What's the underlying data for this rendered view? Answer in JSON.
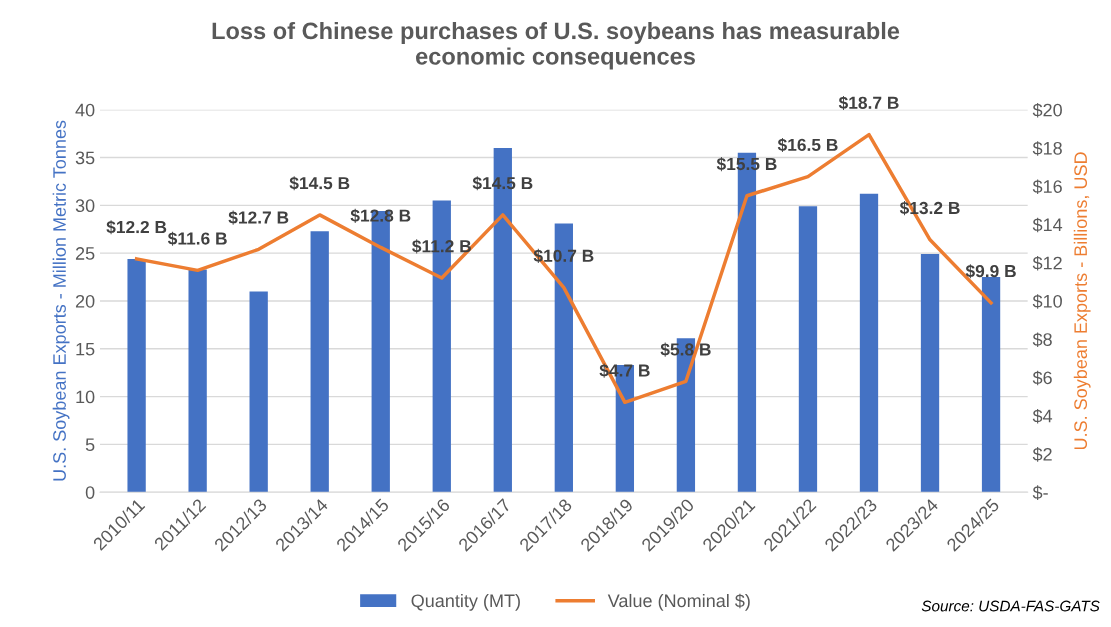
{
  "chart_data": {
    "type": "bar",
    "title": "Loss of Chinese purchases of U.S. soybeans has measurable economic consequences",
    "categories": [
      "2010/11",
      "2011/12",
      "2012/13",
      "2013/14",
      "2014/15",
      "2015/16",
      "2016/17",
      "2017/18",
      "2018/19",
      "2019/20",
      "2020/21",
      "2021/22",
      "2022/23",
      "2023/24",
      "2024/25"
    ],
    "series": [
      {
        "name": "Quantity (MT)",
        "color": "#4472c4",
        "values": [
          24.4,
          23.3,
          21.0,
          27.3,
          29.4,
          30.5,
          36.0,
          28.1,
          13.3,
          16.1,
          35.5,
          29.9,
          31.2,
          24.9,
          22.5
        ]
      },
      {
        "name": "Value (Nominal $)",
        "type": "line",
        "axis": "y2",
        "color": "#ed7d31",
        "values": [
          12.2,
          11.6,
          12.7,
          14.5,
          12.8,
          11.2,
          14.5,
          10.7,
          4.7,
          5.8,
          15.5,
          16.5,
          18.7,
          13.2,
          9.9
        ],
        "value_labels": [
          "$12.2 B",
          "$11.6 B",
          "$12.7 B",
          "$14.5 B",
          "$12.8 B",
          "$11.2 B",
          "$14.5 B",
          "$10.7 B",
          "$4.7 B",
          "$5.8 B",
          "$15.5 B",
          "$16.5 B",
          "$18.7 B",
          "$13.2 B",
          "$9.9 B"
        ]
      }
    ],
    "ylabel": "U.S. Soybean Exports - Million Metric Tonnes",
    "y2label": "U.S. Soybean Exports - Billions, USD",
    "ylim": [
      0,
      40
    ],
    "yticks": [
      0,
      5,
      10,
      15,
      20,
      25,
      30,
      35,
      40
    ],
    "y2lim": [
      0,
      20
    ],
    "y2ticks": [
      {
        "value": 0,
        "label": "$-"
      },
      {
        "value": 2,
        "label": "$2"
      },
      {
        "value": 4,
        "label": "$4"
      },
      {
        "value": 6,
        "label": "$6"
      },
      {
        "value": 8,
        "label": "$8"
      },
      {
        "value": 10,
        "label": "$10"
      },
      {
        "value": 12,
        "label": "$12"
      },
      {
        "value": 14,
        "label": "$14"
      },
      {
        "value": 16,
        "label": "$16"
      },
      {
        "value": 18,
        "label": "$18"
      },
      {
        "value": 20,
        "label": "$20"
      }
    ],
    "grid": "y",
    "legend": "bottom",
    "marker": "none",
    "line_style": "solid",
    "annotations": [
      "Source: USDA-FAS-GATS"
    ]
  }
}
